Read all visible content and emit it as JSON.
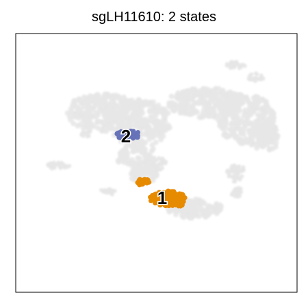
{
  "chart_data": {
    "type": "scatter",
    "title": "sgLH11610: 2 states",
    "xlabel": "",
    "ylabel": "",
    "axes_ticks": false,
    "grid": false,
    "background_color": "#e6e6e6",
    "states": [
      {
        "label": "1",
        "color": "#e68a00"
      },
      {
        "label": "2",
        "color": "#6673b8"
      }
    ]
  }
}
